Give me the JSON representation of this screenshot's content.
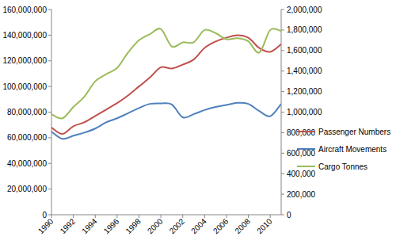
{
  "chart_data": {
    "type": "line",
    "x": [
      1990,
      1991,
      1992,
      1993,
      1994,
      1995,
      1996,
      1997,
      1998,
      1999,
      2000,
      2001,
      2002,
      2003,
      2004,
      2005,
      2006,
      2007,
      2008,
      2009,
      2010,
      2011
    ],
    "xlim": [
      1990,
      2011
    ],
    "xticks": [
      1990,
      1992,
      1994,
      1996,
      1998,
      2000,
      2002,
      2004,
      2006,
      2008,
      2010
    ],
    "ylim": [
      0,
      160000000
    ],
    "yticks": [
      0,
      {
        "value": 20000000,
        "label": "20,000,000"
      },
      {
        "value": 40000000,
        "label": "40,000,000"
      },
      {
        "value": 60000000,
        "label": "60,000,000"
      },
      {
        "value": 80000000,
        "label": "80,000,000"
      },
      {
        "value": 100000000,
        "label": "100,000,000"
      },
      {
        "value": 120000000,
        "label": "120,000,000"
      },
      {
        "value": 140000000,
        "label": "140,000,000"
      },
      {
        "value": 160000000,
        "label": "160,000,000"
      }
    ],
    "y2lim": [
      0,
      2000000
    ],
    "y2ticks": [
      0,
      {
        "value": 200000,
        "label": "200,000"
      },
      {
        "value": 400000,
        "label": "400,000"
      },
      {
        "value": 600000,
        "label": "600,000"
      },
      {
        "value": 800000,
        "label": "800,000"
      },
      {
        "value": 1000000,
        "label": "1,000,000"
      },
      {
        "value": 1200000,
        "label": "1,200,000"
      },
      {
        "value": 1400000,
        "label": "1,400,000"
      },
      {
        "value": 1600000,
        "label": "1,600,000"
      },
      {
        "value": 1800000,
        "label": "1,800,000"
      },
      {
        "value": 2000000,
        "label": "2,000,000"
      }
    ],
    "grid": false,
    "legend": "right",
    "series": [
      {
        "name": "Passenger Numbers",
        "color": "#c0504d",
        "values": [
          68000000,
          63000000,
          69000000,
          72000000,
          77000000,
          82000000,
          87000000,
          93000000,
          100000000,
          107000000,
          115000000,
          114000000,
          117000000,
          121000000,
          130000000,
          135000000,
          138000000,
          140000000,
          138000000,
          130000000,
          127000000,
          133000000
        ]
      },
      {
        "name": "Aircraft Movements",
        "color": "#4f81bd",
        "axis": "y2",
        "values": [
          810000,
          740000,
          770000,
          800000,
          840000,
          900000,
          940000,
          990000,
          1040000,
          1080000,
          1085000,
          1075000,
          950000,
          980000,
          1020000,
          1050000,
          1070000,
          1090000,
          1080000,
          1010000,
          960000,
          1080000
        ]
      },
      {
        "name": "Cargo Tonnes",
        "color": "#9bbb59",
        "axis": "y2",
        "values": [
          980000,
          940000,
          1050000,
          1150000,
          1300000,
          1370000,
          1430000,
          1580000,
          1700000,
          1760000,
          1810000,
          1640000,
          1680000,
          1680000,
          1800000,
          1770000,
          1710000,
          1720000,
          1690000,
          1580000,
          1800000,
          1790000
        ]
      }
    ]
  }
}
